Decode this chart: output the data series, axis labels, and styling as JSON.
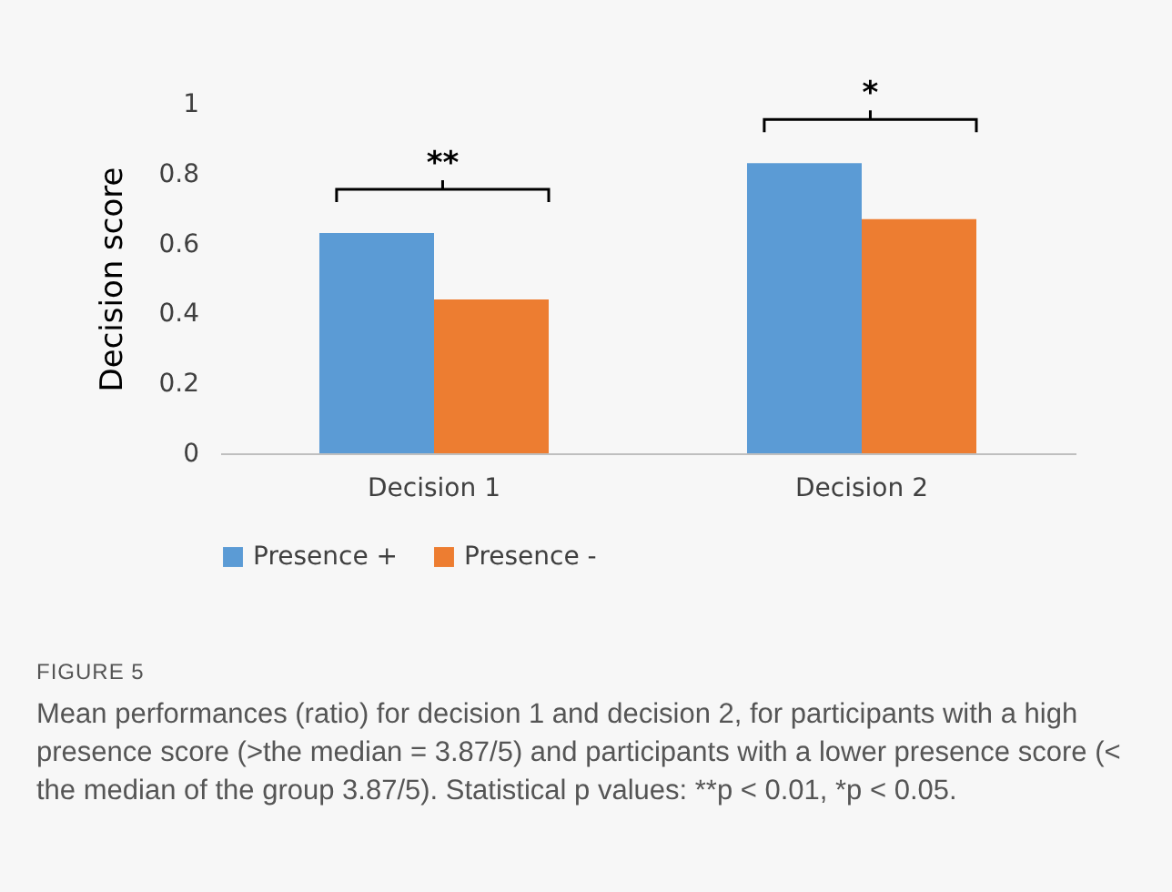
{
  "chart_data": {
    "type": "bar",
    "ylabel": "Decision score",
    "categories": [
      "Decision 1",
      "Decision 2"
    ],
    "series": [
      {
        "name": "Presence +",
        "color": "#5b9bd5",
        "values": [
          0.63,
          0.83
        ]
      },
      {
        "name": "Presence -",
        "color": "#ed7d31",
        "values": [
          0.44,
          0.67
        ]
      }
    ],
    "ylim": [
      0,
      1
    ],
    "yticks": [
      0,
      0.2,
      0.4,
      0.6,
      0.8,
      1
    ],
    "grid": false,
    "legend": "bottom",
    "annotations": [
      "**",
      "*",
      "FIGURE 5",
      "Mean performances (ratio) for decision 1 and decision 2, for participants with a high presence score (>the median = 3.87/5) and participants with a lower presence score (< the median of the group 3.87/5). Statistical p values: **p < 0.01, *p < 0.05."
    ]
  }
}
